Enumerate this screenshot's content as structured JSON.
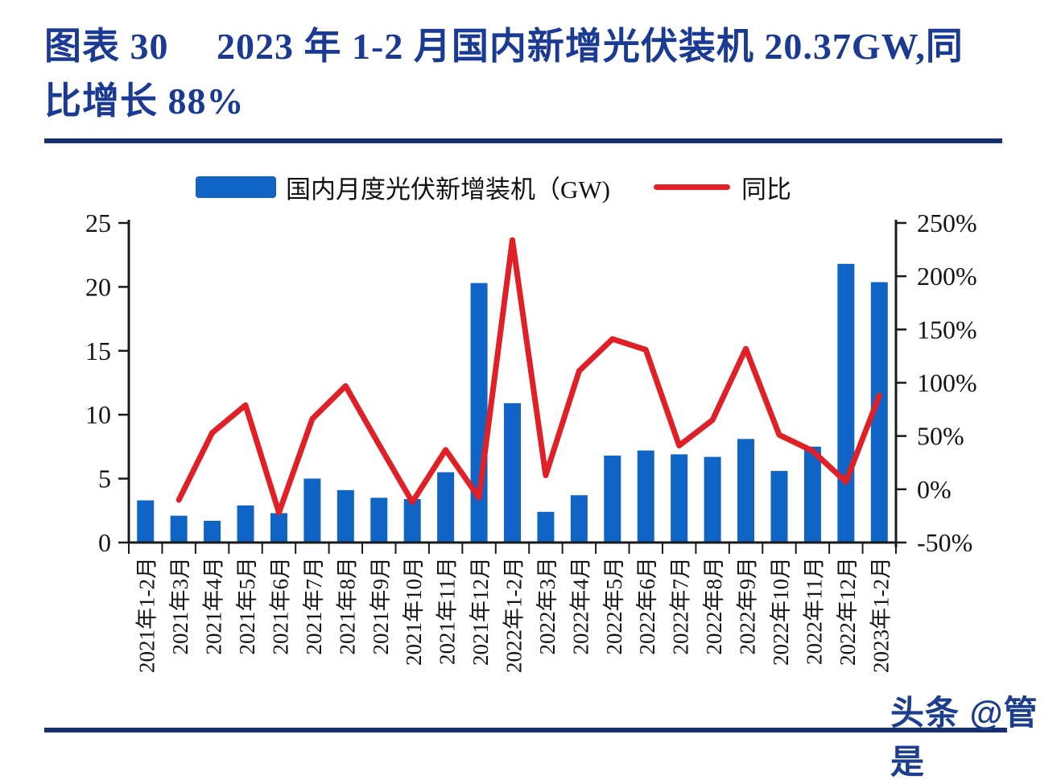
{
  "title": {
    "line1": "图表 30　 2023 年 1-2 月国内新增光伏装机 20.37GW,同",
    "line2": "比增长 88%"
  },
  "legend": {
    "bar_label": "国内月度光伏新增装机（GW)",
    "line_label": "同比"
  },
  "watermark": "头条 @管是",
  "colors": {
    "bar": "#0f64c5",
    "line": "#e01f26",
    "axis": "#1a1a1a",
    "title_navy": "#1b3a94",
    "rule_navy": "#16306e"
  },
  "chart_data": {
    "type": "bar",
    "subtype": "bar+line combo, dual axis",
    "categories": [
      "2021年1-2月",
      "2021年3月",
      "2021年4月",
      "2021年5月",
      "2021年6月",
      "2021年7月",
      "2021年8月",
      "2021年9月",
      "2021年10月",
      "2021年11月",
      "2021年12月",
      "2022年1-2月",
      "2022年3月",
      "2022年4月",
      "2022年5月",
      "2022年6月",
      "2022年7月",
      "2022年8月",
      "2022年9月",
      "2022年10月",
      "2022年11月",
      "2022年12月",
      "2023年1-2月"
    ],
    "series": [
      {
        "name": "国内月度光伏新增装机（GW)",
        "type": "bar",
        "axis": "left",
        "values": [
          3.3,
          2.1,
          1.7,
          2.9,
          2.3,
          5.0,
          4.1,
          3.5,
          3.4,
          5.5,
          20.3,
          10.9,
          2.4,
          3.7,
          6.8,
          7.2,
          6.9,
          6.7,
          8.1,
          5.6,
          7.5,
          21.8,
          20.37
        ]
      },
      {
        "name": "同比",
        "type": "line",
        "axis": "right",
        "values": [
          null,
          -10,
          53,
          79,
          -22,
          66,
          97,
          42,
          -12,
          37,
          -8,
          234,
          13,
          111,
          141,
          131,
          41,
          65,
          132,
          51,
          36,
          7,
          88
        ]
      }
    ],
    "left_axis": {
      "min": 0,
      "max": 25,
      "tick_values": [
        0,
        5,
        10,
        15,
        20,
        25
      ],
      "tick_labels": [
        "0",
        "5",
        "10",
        "15",
        "20",
        "25"
      ]
    },
    "right_axis": {
      "min": -50,
      "max": 250,
      "tick_values": [
        -50,
        0,
        50,
        100,
        150,
        200,
        250
      ],
      "tick_labels": [
        "-50%",
        "0%",
        "50%",
        "100%",
        "150%",
        "200%",
        "250%"
      ]
    },
    "grid": false,
    "legend_position": "top"
  }
}
